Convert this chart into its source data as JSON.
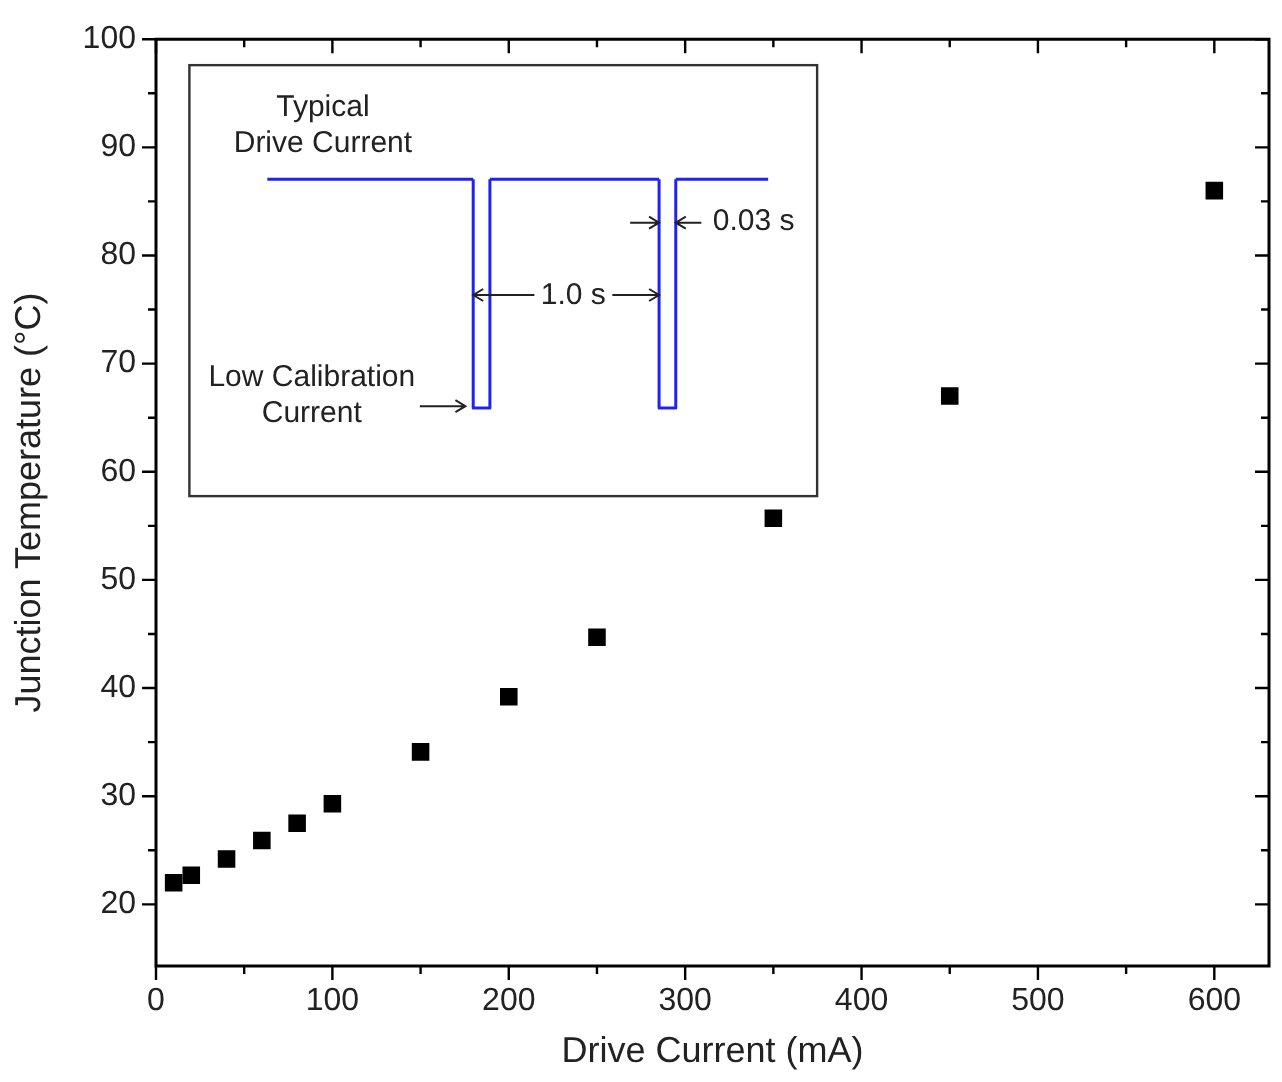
{
  "chart_data": {
    "type": "scatter",
    "xlabel": "Drive Current (mA)",
    "ylabel": "Junction Temperature (°C)",
    "x": [
      10,
      20,
      40,
      60,
      80,
      100,
      150,
      200,
      250,
      350,
      450,
      600
    ],
    "series": [
      {
        "color": "#000000",
        "values": [
          22,
          22.7,
          24.2,
          25.9,
          27.5,
          29.3,
          34.1,
          39.2,
          44.7,
          55.7,
          67,
          86
        ]
      }
    ],
    "marker": "square",
    "xlim": [
      0,
      631
    ],
    "ylim": [
      14.3,
      100
    ],
    "xticks": [
      0,
      {
        "value": 50,
        "label": null
      },
      100,
      {
        "value": 150,
        "label": null
      },
      200,
      {
        "value": 250,
        "label": null
      },
      300,
      {
        "value": 350,
        "label": null
      },
      400,
      {
        "value": 450,
        "label": null
      },
      500,
      {
        "value": 550,
        "label": null
      },
      600
    ],
    "yticks": [
      20,
      {
        "value": 25,
        "label": null
      },
      30,
      {
        "value": 35,
        "label": null
      },
      40,
      {
        "value": 45,
        "label": null
      },
      50,
      {
        "value": 55,
        "label": null
      },
      60,
      {
        "value": 65,
        "label": null
      },
      70,
      {
        "value": 75,
        "label": null
      },
      80,
      {
        "value": 85,
        "label": null
      },
      90,
      {
        "value": 95,
        "label": null
      },
      100
    ],
    "grid": false,
    "legend": false,
    "annotations": [
      "Typical\nDrive Current",
      "Low Calibration\nCurrent",
      "1.0 s",
      "0.03 s"
    ]
  }
}
